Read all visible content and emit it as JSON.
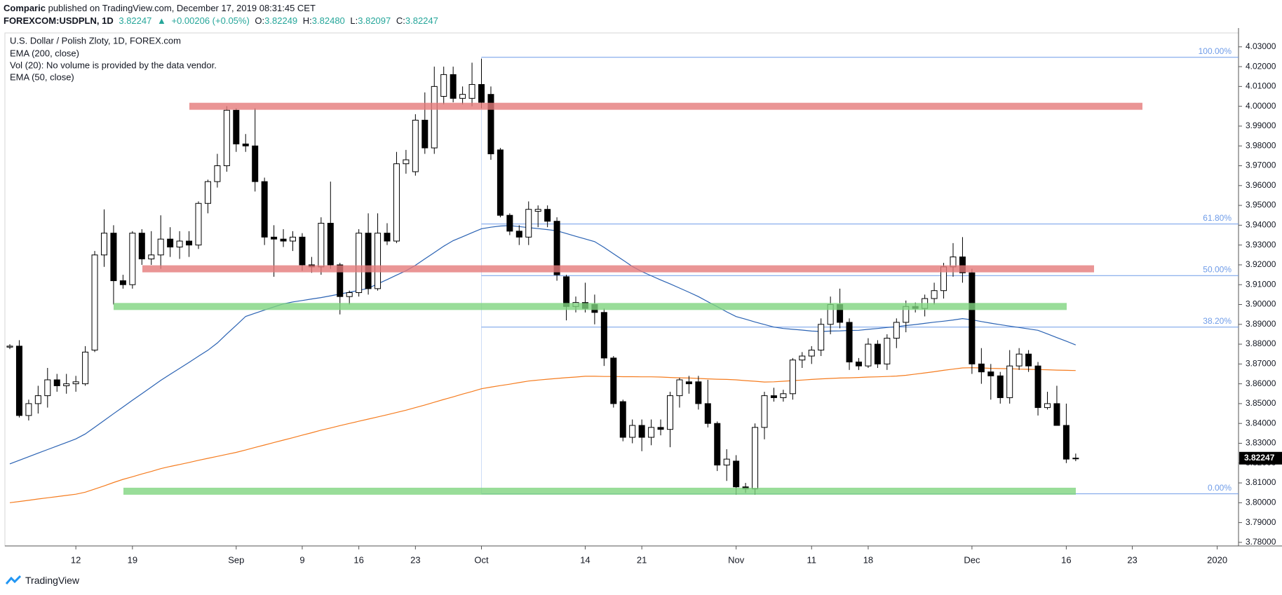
{
  "header": {
    "publisher": "Comparic",
    "published": "published on TradingView.com, December 17, 2019 08:31:45 CET",
    "quote": [
      "FOREXCOM:USDPLN, 1D",
      "3.82247",
      "▲",
      "+0.00206 (+0.05%)",
      "O:",
      "3.82249",
      "H:",
      "3.82480",
      "L:",
      "3.82097",
      "C:",
      "3.82247"
    ]
  },
  "footer": {
    "brand": "TradingView"
  },
  "chart_data": {
    "type": "candlestick",
    "title": "U.S. Dollar / Polish Zloty, 1D, FOREX.com",
    "volume_note": "Vol (20): No volume is provided by the data vendor.",
    "up_color": "#ffffff",
    "down_color": "#000000",
    "categories": [
      null,
      null,
      null,
      null,
      null,
      null,
      null,
      "12",
      null,
      null,
      null,
      null,
      null,
      "19",
      null,
      null,
      null,
      null,
      null,
      null,
      null,
      null,
      null,
      null,
      "Sep",
      null,
      null,
      null,
      null,
      null,
      null,
      "9",
      null,
      null,
      null,
      null,
      null,
      "16",
      null,
      null,
      null,
      null,
      null,
      "23",
      null,
      null,
      null,
      null,
      null,
      null,
      "Oct",
      null,
      null,
      null,
      null,
      null,
      null,
      null,
      null,
      null,
      null,
      "14",
      null,
      null,
      null,
      null,
      null,
      "21",
      null,
      null,
      null,
      null,
      null,
      null,
      null,
      null,
      null,
      "Nov",
      null,
      null,
      null,
      null,
      null,
      null,
      null,
      "11",
      null,
      null,
      null,
      null,
      null,
      "18",
      null,
      null,
      null,
      null,
      null,
      null,
      null,
      null,
      null,
      null,
      "Dec",
      null,
      null,
      null,
      null,
      null,
      null,
      null,
      null,
      null,
      "16",
      null,
      null,
      null,
      null,
      null,
      null,
      "23",
      null,
      null,
      null,
      null,
      null,
      null,
      null,
      null,
      "2020",
      null,
      null
    ],
    "open": [
      3.8785,
      3.879,
      3.844,
      3.85,
      3.854,
      3.862,
      3.859,
      3.86,
      3.86,
      3.877,
      3.925,
      3.936,
      3.912,
      3.91,
      3.936,
      3.923,
      3.925,
      3.933,
      3.929,
      3.932,
      3.93,
      3.951,
      3.962,
      3.97,
      3.998,
      3.981,
      3.98,
      3.962,
      3.934,
      3.933,
      3.932,
      3.934,
      3.92,
      3.919,
      3.941,
      3.92,
      3.904,
      3.906,
      3.936,
      3.908,
      3.936,
      3.932,
      3.971,
      3.967,
      3.993,
      3.979,
      4.005,
      4.016,
      4.004,
      4.004,
      4.011,
      4.006,
      3.978,
      3.945,
      3.937,
      3.934,
      3.947,
      3.948,
      3.942,
      3.914,
      3.899,
      3.901,
      3.9,
      3.896,
      3.873,
      3.851,
      3.833,
      3.839,
      3.833,
      3.838,
      3.837,
      3.854,
      3.861,
      3.861,
      3.85,
      3.84,
      3.819,
      3.821,
      3.808,
      3.807,
      3.838,
      3.854,
      3.853,
      3.855,
      3.872,
      3.874,
      3.877,
      3.89,
      3.9,
      3.891,
      3.871,
      3.869,
      3.88,
      3.87,
      3.883,
      3.891,
      3.899,
      3.898,
      3.903,
      3.907,
      3.919,
      3.924,
      3.916,
      3.87,
      3.866,
      3.864,
      3.853,
      3.869,
      3.875,
      3.869,
      3.848,
      3.85,
      3.839,
      3.82249,
      null,
      null,
      null,
      null,
      null,
      null,
      null,
      null,
      null,
      null,
      null,
      null,
      null,
      null,
      null,
      null,
      null
    ],
    "high": [
      3.88,
      3.882,
      3.852,
      3.859,
      3.868,
      3.865,
      3.865,
      3.864,
      3.879,
      3.927,
      3.948,
      3.94,
      3.915,
      3.937,
      3.938,
      3.937,
      3.945,
      3.939,
      3.937,
      3.937,
      3.952,
      3.963,
      3.976,
      4.0,
      3.999,
      3.986,
      3.999,
      3.964,
      3.94,
      3.938,
      3.937,
      3.936,
      3.924,
      3.944,
      3.962,
      3.921,
      3.907,
      3.938,
      3.946,
      3.946,
      3.941,
      3.977,
      3.978,
      3.996,
      4.007,
      4.02,
      4.02,
      4.02,
      4.01,
      4.022,
      4.024,
      4.01,
      3.979,
      3.946,
      3.94,
      3.952,
      3.95,
      3.95,
      3.944,
      3.915,
      3.904,
      3.911,
      3.905,
      3.898,
      3.874,
      3.852,
      3.842,
      3.842,
      3.842,
      3.842,
      3.856,
      3.863,
      3.864,
      3.864,
      3.862,
      3.841,
      3.827,
      3.824,
      3.81,
      3.84,
      3.856,
      3.858,
      3.857,
      3.873,
      3.876,
      3.879,
      3.893,
      3.904,
      3.908,
      3.893,
      3.873,
      3.883,
      3.882,
      3.885,
      3.893,
      3.902,
      3.901,
      3.905,
      3.911,
      3.921,
      3.931,
      3.934,
      3.918,
      3.878,
      3.87,
      3.866,
      3.877,
      3.878,
      3.877,
      3.871,
      3.856,
      3.859,
      3.85,
      3.8248,
      null,
      null,
      null,
      null,
      null,
      null,
      null,
      null,
      null,
      null,
      null,
      null,
      null,
      null,
      null,
      null,
      null
    ],
    "low": [
      3.8775,
      3.843,
      3.8415,
      3.845,
      3.848,
      3.856,
      3.855,
      3.856,
      3.859,
      3.876,
      3.919,
      3.9,
      3.908,
      3.908,
      3.92,
      3.92,
      3.918,
      3.924,
      3.923,
      3.924,
      3.928,
      3.946,
      3.959,
      3.967,
      3.977,
      3.977,
      3.957,
      3.93,
      3.914,
      3.929,
      3.927,
      3.917,
      3.916,
      3.915,
      3.918,
      3.895,
      3.9,
      3.904,
      3.905,
      3.907,
      3.93,
      3.931,
      3.966,
      3.965,
      3.976,
      3.976,
      4.001,
      4.002,
      4.001,
      4.0,
      3.999,
      3.973,
      3.944,
      3.935,
      3.93,
      3.93,
      3.939,
      3.939,
      3.912,
      3.892,
      3.896,
      3.896,
      3.89,
      3.869,
      3.848,
      3.831,
      3.83,
      3.826,
      3.829,
      3.834,
      3.828,
      3.848,
      3.855,
      3.847,
      3.838,
      3.816,
      3.811,
      3.804,
      3.805,
      3.804,
      3.832,
      3.851,
      3.851,
      3.852,
      3.868,
      3.87,
      3.874,
      3.885,
      3.888,
      3.867,
      3.867,
      3.868,
      3.868,
      3.867,
      3.878,
      3.886,
      3.896,
      3.894,
      3.9,
      3.903,
      3.914,
      3.911,
      3.865,
      3.86,
      3.852,
      3.85,
      3.85,
      3.867,
      3.866,
      3.844,
      3.847,
      3.839,
      3.82,
      3.82097,
      null,
      null,
      null,
      null,
      null,
      null,
      null,
      null,
      null,
      null,
      null,
      null,
      null,
      null,
      null,
      null,
      null
    ],
    "close": [
      3.879,
      3.844,
      3.85,
      3.854,
      3.862,
      3.859,
      3.86,
      3.861,
      3.876,
      3.925,
      3.936,
      3.912,
      3.91,
      3.936,
      3.923,
      3.925,
      3.933,
      3.929,
      3.932,
      3.93,
      3.951,
      3.962,
      3.97,
      3.998,
      3.981,
      3.98,
      3.962,
      3.934,
      3.933,
      3.932,
      3.934,
      3.92,
      3.919,
      3.941,
      3.92,
      3.904,
      3.906,
      3.936,
      3.908,
      3.936,
      3.932,
      3.971,
      3.973,
      3.993,
      3.979,
      4.01,
      4.016,
      4.004,
      4.006,
      4.011,
      4.002,
      3.976,
      3.945,
      3.937,
      3.934,
      3.948,
      3.948,
      3.942,
      3.915,
      3.899,
      3.901,
      3.898,
      3.896,
      3.873,
      3.85,
      3.833,
      3.839,
      3.833,
      3.838,
      3.837,
      3.854,
      3.862,
      3.86,
      3.85,
      3.84,
      3.819,
      3.822,
      3.808,
      3.807,
      3.838,
      3.854,
      3.853,
      3.855,
      3.872,
      3.874,
      3.877,
      3.89,
      3.9,
      3.891,
      3.871,
      3.869,
      3.88,
      3.87,
      3.883,
      3.891,
      3.899,
      3.898,
      3.903,
      3.907,
      3.919,
      3.924,
      3.916,
      3.87,
      3.866,
      3.864,
      3.853,
      3.869,
      3.875,
      3.869,
      3.848,
      3.85,
      3.839,
      3.822,
      3.82247,
      null,
      null,
      null,
      null,
      null,
      null,
      null,
      null,
      null,
      null,
      null,
      null,
      null,
      null,
      null,
      null,
      null
    ],
    "series": [
      {
        "name": "EMA (200, close)",
        "color": "#f57c1f",
        "values": [
          3.8,
          3.8006,
          3.8012,
          3.8019,
          3.8025,
          3.8031,
          3.8037,
          3.8043,
          3.8053,
          3.8069,
          3.8085,
          3.8102,
          3.8118,
          3.8131,
          3.8145,
          3.8158,
          3.8172,
          3.8183,
          3.8193,
          3.8203,
          3.8214,
          3.8224,
          3.8234,
          3.8244,
          3.8254,
          3.8266,
          3.8279,
          3.8291,
          3.8304,
          3.8316,
          3.8328,
          3.8341,
          3.8353,
          3.8366,
          3.8377,
          3.8389,
          3.84,
          3.8411,
          3.8422,
          3.8433,
          3.8444,
          3.8455,
          3.8467,
          3.848,
          3.8493,
          3.8507,
          3.8521,
          3.8534,
          3.8548,
          3.8561,
          3.8575,
          3.8583,
          3.8591,
          3.8598,
          3.8606,
          3.8614,
          3.8619,
          3.8623,
          3.8627,
          3.8631,
          3.8634,
          3.8638,
          3.8638,
          3.8637,
          3.8637,
          3.8636,
          3.8636,
          3.8635,
          3.8635,
          3.8634,
          3.8632,
          3.863,
          3.8629,
          3.8627,
          3.8625,
          3.8623,
          3.8622,
          3.862,
          3.8616,
          3.8613,
          3.8609,
          3.861,
          3.8613,
          3.8616,
          3.8619,
          3.8622,
          3.8625,
          3.8627,
          3.8629,
          3.863,
          3.8632,
          3.8634,
          3.8635,
          3.8637,
          3.8639,
          3.8643,
          3.8649,
          3.8655,
          3.8661,
          3.8668,
          3.8674,
          3.868,
          3.8681,
          3.868,
          3.8678,
          3.8677,
          3.8676,
          3.8674,
          3.8673,
          3.8672,
          3.8671,
          3.8669,
          3.8668,
          3.8667,
          null,
          null,
          null,
          null,
          null,
          null,
          null,
          null,
          null,
          null,
          null,
          null,
          null,
          null,
          null,
          null,
          null
        ]
      },
      {
        "name": "EMA (50, close)",
        "color": "#2a62b3",
        "values": [
          3.8196,
          3.8214,
          3.8232,
          3.825,
          3.8268,
          3.8286,
          3.8304,
          3.8322,
          3.8347,
          3.8381,
          3.8415,
          3.8449,
          3.8483,
          3.8517,
          3.855,
          3.8584,
          3.8617,
          3.8648,
          3.8678,
          3.8708,
          3.8739,
          3.8769,
          3.8806,
          3.8851,
          3.8895,
          3.894,
          3.8956,
          3.8972,
          3.8988,
          3.9003,
          3.9013,
          3.902,
          3.9028,
          3.9035,
          3.9044,
          3.9053,
          3.9062,
          3.9071,
          3.9082,
          3.9104,
          3.9126,
          3.9148,
          3.917,
          3.9198,
          3.923,
          3.9262,
          3.9294,
          3.9322,
          3.9342,
          3.9362,
          3.9382,
          3.939,
          3.9396,
          3.9398,
          3.9393,
          3.9388,
          3.9383,
          3.9378,
          3.9372,
          3.9358,
          3.9344,
          3.9331,
          3.9317,
          3.9288,
          3.9256,
          3.9224,
          3.9192,
          3.9166,
          3.9145,
          3.9124,
          3.9104,
          3.9083,
          3.9062,
          3.904,
          3.9014,
          3.8989,
          3.8963,
          3.8939,
          3.8926,
          3.8912,
          3.8899,
          3.8886,
          3.8879,
          3.8875,
          3.8871,
          3.8866,
          3.8864,
          3.8866,
          3.8867,
          3.8869,
          3.887,
          3.8875,
          3.8879,
          3.8884,
          3.8888,
          3.8894,
          3.8899,
          3.8905,
          3.8911,
          3.8916,
          3.8922,
          3.8929,
          3.8923,
          3.8914,
          3.8906,
          3.8898,
          3.8891,
          3.8884,
          3.8877,
          3.887,
          3.8852,
          3.8833,
          3.8815,
          3.8796,
          null,
          null,
          null,
          null,
          null,
          null,
          null,
          null,
          null,
          null,
          null,
          null,
          null,
          null,
          null,
          null,
          null
        ]
      }
    ],
    "zones": [
      {
        "value": 4.0,
        "color": "#e57b7b"
      },
      {
        "value": 3.918,
        "color": "#e57b7b"
      },
      {
        "value": 3.899,
        "color": "#7fd47f"
      },
      {
        "value": 3.8058,
        "color": "#7fd47f"
      }
    ],
    "fib_color": "#6f9ce8",
    "fib_levels": [
      {
        "value": 4.0247,
        "label": "100.00%"
      },
      {
        "value": 3.9406,
        "label": "61.80%"
      },
      {
        "value": 3.9146,
        "label": "50.00%"
      },
      {
        "value": 3.8886,
        "label": "38.20%"
      },
      {
        "value": 3.8045,
        "label": "0.00%"
      }
    ],
    "ylim": [
      3.7782,
      4.037
    ],
    "yticks": [
      {
        "value": 3.78,
        "label": "3.78000"
      },
      {
        "value": 3.79,
        "label": "3.79000"
      },
      {
        "value": 3.8,
        "label": "3.80000"
      },
      {
        "value": 3.81,
        "label": "3.81000"
      },
      {
        "value": 3.82,
        "label": "3.82000"
      },
      {
        "value": 3.83,
        "label": "3.83000"
      },
      {
        "value": 3.84,
        "label": "3.84000"
      },
      {
        "value": 3.85,
        "label": "3.85000"
      },
      {
        "value": 3.86,
        "label": "3.86000"
      },
      {
        "value": 3.87,
        "label": "3.87000"
      },
      {
        "value": 3.88,
        "label": "3.88000"
      },
      {
        "value": 3.89,
        "label": "3.89000"
      },
      {
        "value": 3.9,
        "label": "3.90000"
      },
      {
        "value": 3.91,
        "label": "3.91000"
      },
      {
        "value": 3.92,
        "label": "3.92000"
      },
      {
        "value": 3.93,
        "label": "3.93000"
      },
      {
        "value": 3.94,
        "label": "3.94000"
      },
      {
        "value": 3.95,
        "label": "3.95000"
      },
      {
        "value": 3.96,
        "label": "3.96000"
      },
      {
        "value": 3.97,
        "label": "3.97000"
      },
      {
        "value": 3.98,
        "label": "3.98000"
      },
      {
        "value": 3.99,
        "label": "3.99000"
      },
      {
        "value": 4.0,
        "label": "4.00000"
      },
      {
        "value": 4.01,
        "label": "4.01000"
      },
      {
        "value": 4.02,
        "label": "4.02000"
      },
      {
        "value": 4.03,
        "label": "4.03000"
      }
    ],
    "grid": false
  }
}
